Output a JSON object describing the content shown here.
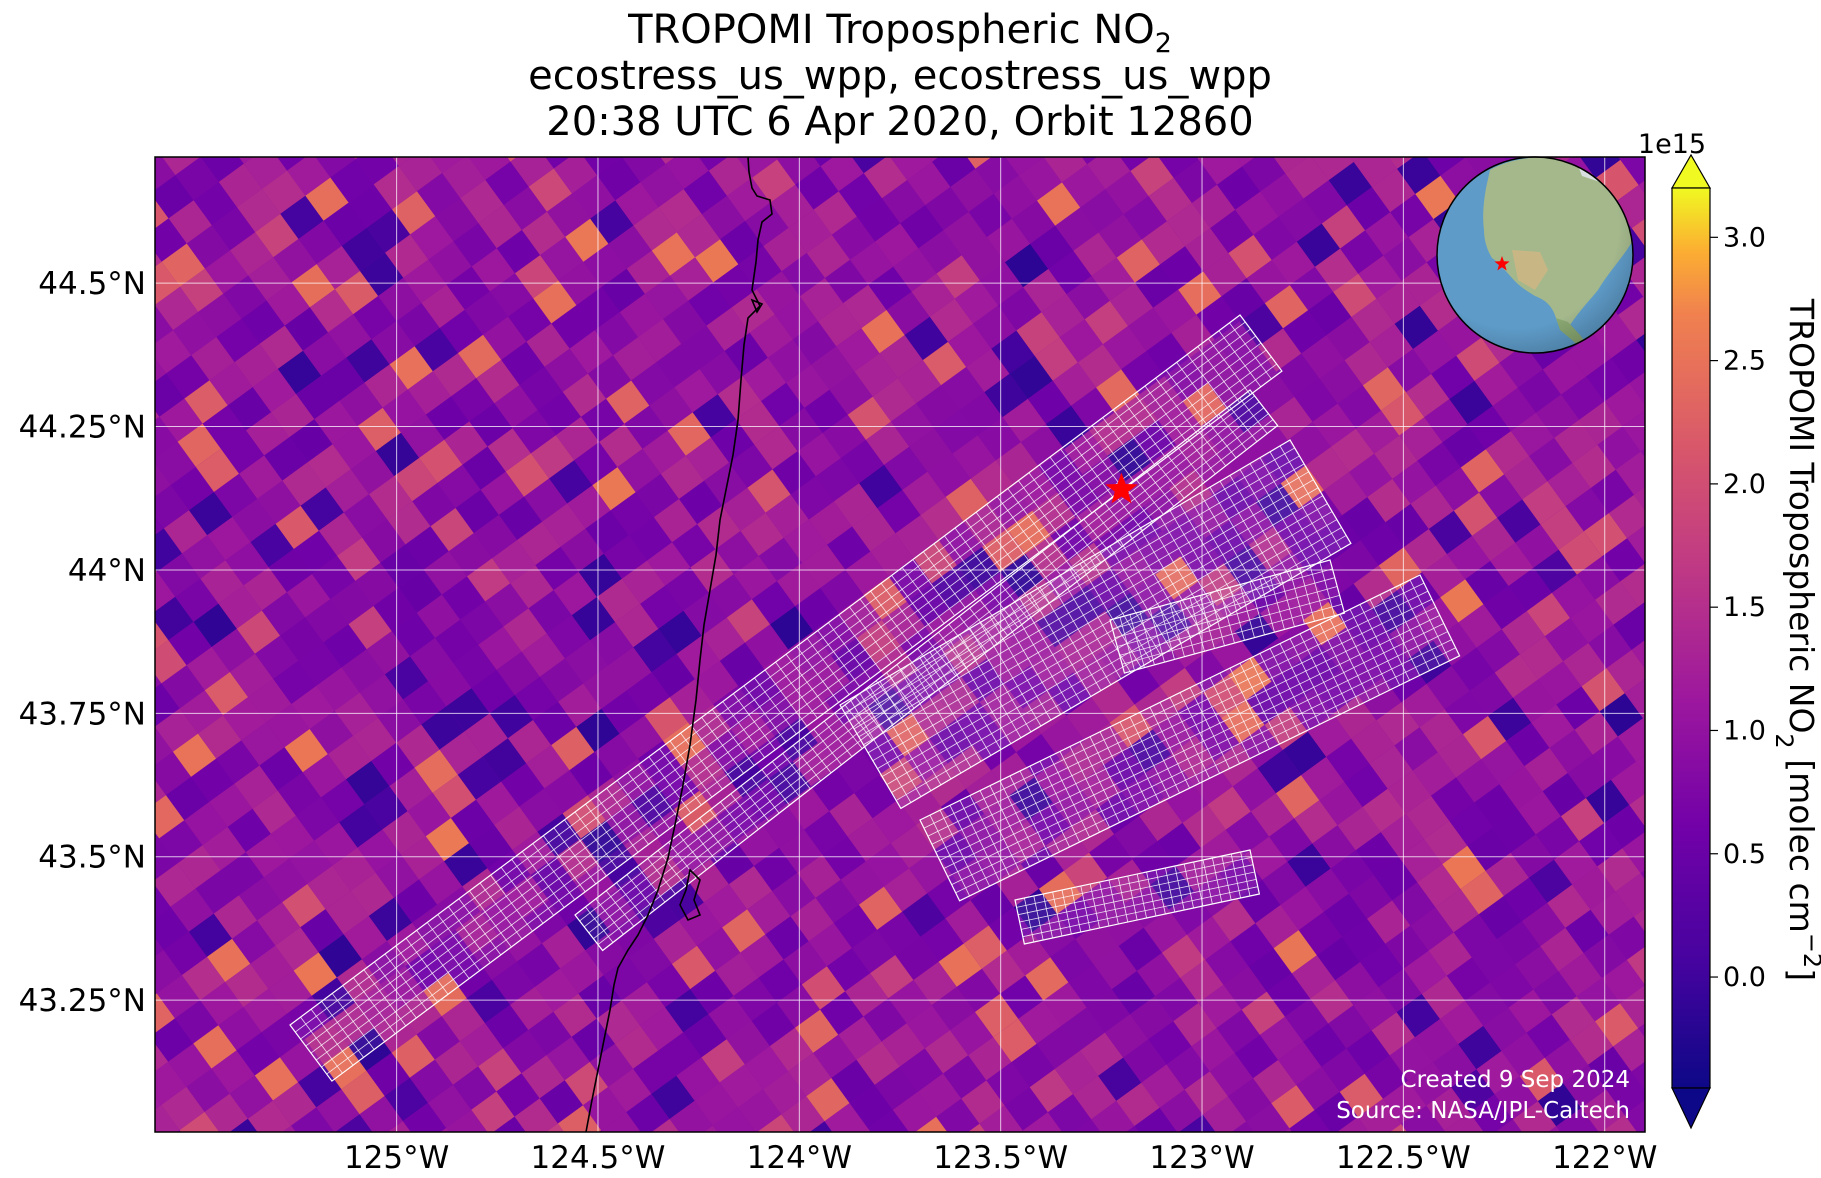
{
  "title": {
    "line1": "TROPOMI Tropospheric NO",
    "line1_sub": "2",
    "line2": "ecostress_us_wpp, ecostress_us_wpp",
    "line3": "20:38 UTC 6 Apr 2020, Orbit 12860"
  },
  "map": {
    "lon_range": [
      -125.6,
      -121.9
    ],
    "lat_range": [
      43.02,
      44.72
    ],
    "lon_ticks": [
      {
        "value": -125.0,
        "label": "125°W"
      },
      {
        "value": -124.5,
        "label": "124.5°W"
      },
      {
        "value": -124.0,
        "label": "124°W"
      },
      {
        "value": -123.5,
        "label": "123.5°W"
      },
      {
        "value": -123.0,
        "label": "123°W"
      },
      {
        "value": -122.5,
        "label": "122.5°W"
      },
      {
        "value": -122.0,
        "label": "122°W"
      }
    ],
    "lat_ticks": [
      {
        "value": 44.5,
        "label": "44.5°N"
      },
      {
        "value": 44.25,
        "label": "44.25°N"
      },
      {
        "value": 44.0,
        "label": "44°N"
      },
      {
        "value": 43.75,
        "label": "43.75°N"
      },
      {
        "value": 43.5,
        "label": "43.5°N"
      },
      {
        "value": 43.25,
        "label": "43.25°N"
      }
    ],
    "site_marker": {
      "lon": -123.2,
      "lat": 44.14,
      "color": "#ff0000"
    },
    "coastline_color": "#000000",
    "grid_color": "#ffffff",
    "overlay_color": "#ffffff"
  },
  "colorbar": {
    "label": "TROPOMI Tropospheric NO",
    "label_sub": "2",
    "label_suffix": " [molec cm",
    "label_sup": "−2",
    "label_end": "]",
    "multiplier": "1e15",
    "min": -0.45,
    "max": 3.2,
    "ticks": [
      {
        "value": 0.0,
        "label": "0.0"
      },
      {
        "value": 0.5,
        "label": "0.5"
      },
      {
        "value": 1.0,
        "label": "1.0"
      },
      {
        "value": 1.5,
        "label": "1.5"
      },
      {
        "value": 2.0,
        "label": "2.0"
      },
      {
        "value": 2.5,
        "label": "2.5"
      },
      {
        "value": 3.0,
        "label": "3.0"
      }
    ],
    "colormap": "plasma"
  },
  "credits": {
    "created": "Created 9 Sep 2024",
    "source": "Source: NASA/JPL-Caltech"
  },
  "inset": {
    "ocean_color": "#5e9bc8",
    "land_color": "#9fb88a",
    "marker_color": "#ff0000"
  }
}
